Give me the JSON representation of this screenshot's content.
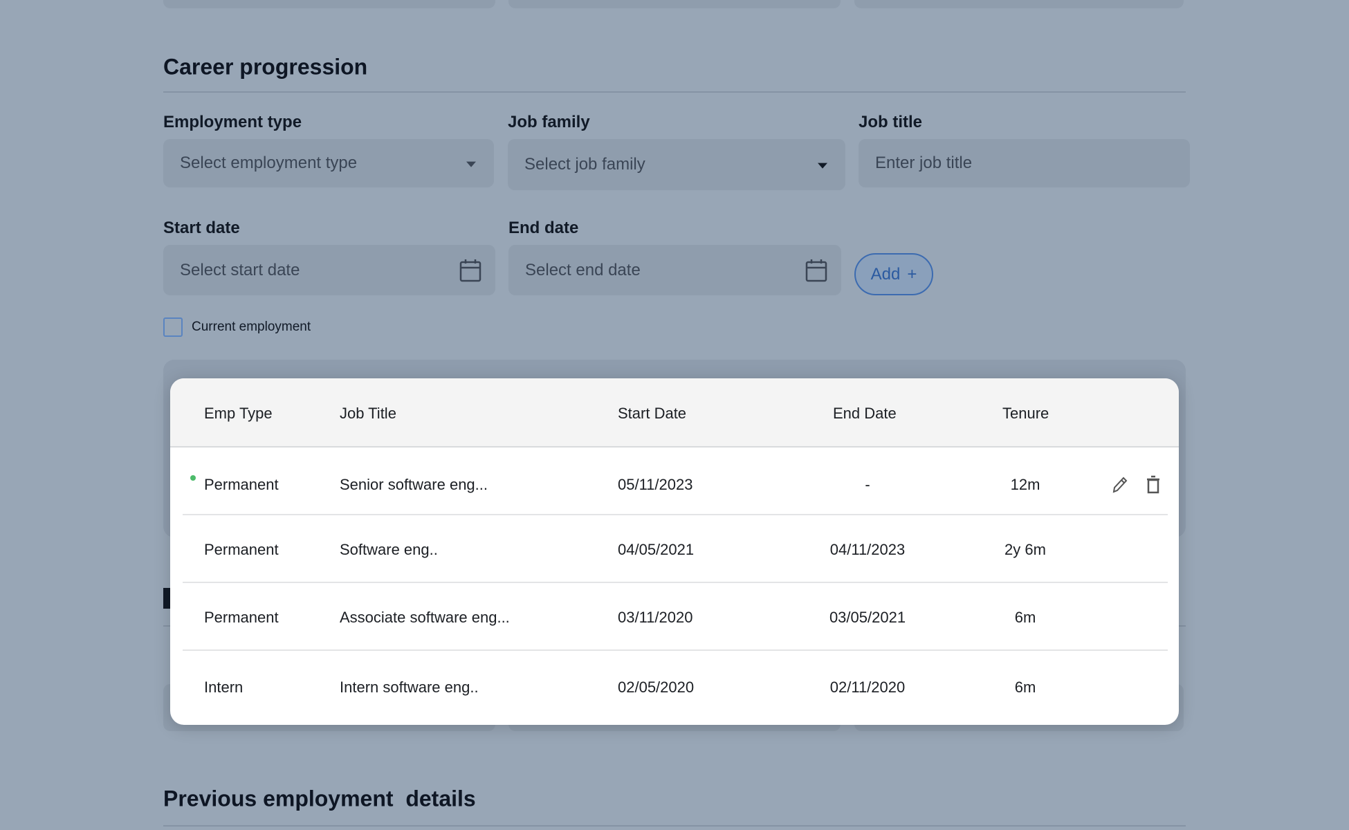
{
  "section_title": "Career progression",
  "form": {
    "employment_type": {
      "label": "Employment type",
      "placeholder": "Select employment type"
    },
    "job_family": {
      "label": "Job family",
      "placeholder": "Select job family"
    },
    "job_title": {
      "label": "Job title",
      "placeholder": "Enter job title"
    },
    "start_date": {
      "label": "Start date",
      "placeholder": "Select start date"
    },
    "end_date": {
      "label": "End date",
      "placeholder": "Select end date"
    },
    "add_button": {
      "label": "Add",
      "icon": "+"
    },
    "current_employment": {
      "label": "Current employment",
      "checked": false
    }
  },
  "table": {
    "headers": [
      "Emp Type",
      "Job Title",
      "Start Date",
      "End Date",
      "Tenure"
    ],
    "rows": [
      {
        "emp_type": "Permanent",
        "job_title": "Senior software eng...",
        "start": "05/11/2023",
        "end": "-",
        "tenure": "12m",
        "current": true
      },
      {
        "emp_type": "Permanent",
        "job_title": "Software eng..",
        "start": "04/05/2021",
        "end": "04/11/2023",
        "tenure": "2y 6m"
      },
      {
        "emp_type": "Permanent",
        "job_title": "Associate software eng...",
        "start": "03/11/2020",
        "end": "03/05/2021",
        "tenure": "6m"
      },
      {
        "emp_type": "Intern",
        "job_title": "Intern software eng..",
        "start": "02/05/2020",
        "end": "02/11/2020",
        "tenure": "6m"
      }
    ]
  },
  "next_section_title": "Previous employment  details",
  "colors": {
    "accent": "#3c6bb0",
    "current_dot": "#4cbb6a",
    "overlay_bg": "#98a6b6"
  }
}
